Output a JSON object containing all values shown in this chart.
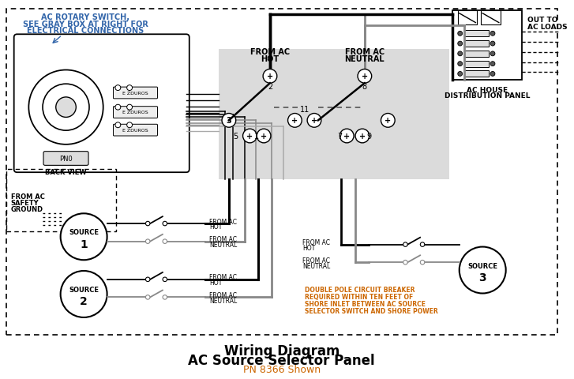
{
  "title_line1": "Wiring Diagram",
  "title_line2": "AC Source Selector Panel",
  "title_line3": "PN 8366 Shown",
  "bg_color": "#ffffff",
  "blue_text_color": "#3366AA",
  "orange_text_color": "#CC6600",
  "black": "#000000",
  "gray_wire": "#888888",
  "lgray_wire": "#aaaaaa",
  "gray_box_fill": "#c8c8c8"
}
